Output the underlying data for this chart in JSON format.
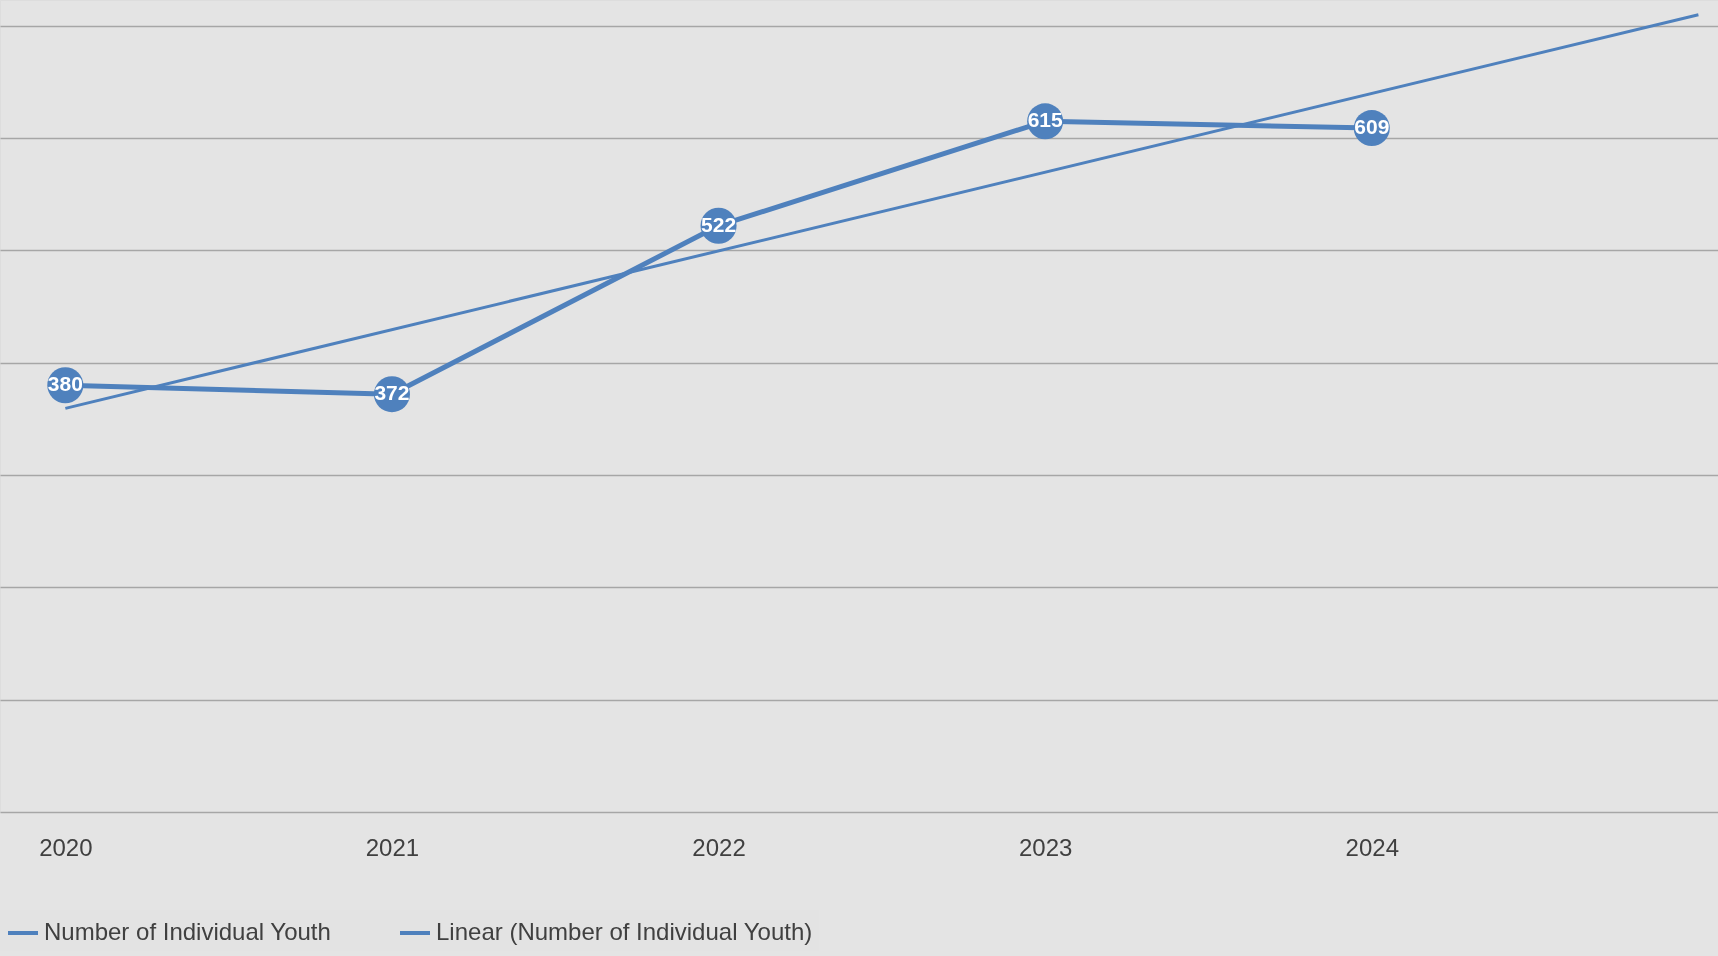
{
  "chart_data": {
    "type": "line",
    "x": [
      2020,
      2021,
      2022,
      2023,
      2024
    ],
    "series": [
      {
        "name": "Number of Individual Youth",
        "color": "#4f81bd",
        "values": [
          380,
          372,
          522,
          615,
          609
        ],
        "marker": "circle",
        "value_labels": [
          "380",
          "372",
          "522",
          "615",
          "609"
        ]
      },
      {
        "name": "Linear (Number of Individual Youth)",
        "color": "#4f81bd",
        "type": "line",
        "x": [
          2020,
          2025
        ],
        "values": [
          359.4,
          709.9
        ],
        "marker": "none"
      }
    ],
    "xlim": [
      2019.8,
      2025.06
    ],
    "xticks": [
      2020,
      2021,
      2022,
      2023,
      2024
    ],
    "ylim": [
      0,
      723
    ],
    "yticks": [
      {
        "value": 0,
        "label": null
      },
      {
        "value": 100,
        "label": null
      },
      {
        "value": 200,
        "label": null
      },
      {
        "value": 300,
        "label": null
      },
      {
        "value": 400,
        "label": null
      },
      {
        "value": 500,
        "label": null
      },
      {
        "value": 600,
        "label": null
      },
      {
        "value": 700,
        "label": null
      }
    ],
    "tick_labels": "x",
    "grid": "y",
    "legend": "bottom"
  }
}
